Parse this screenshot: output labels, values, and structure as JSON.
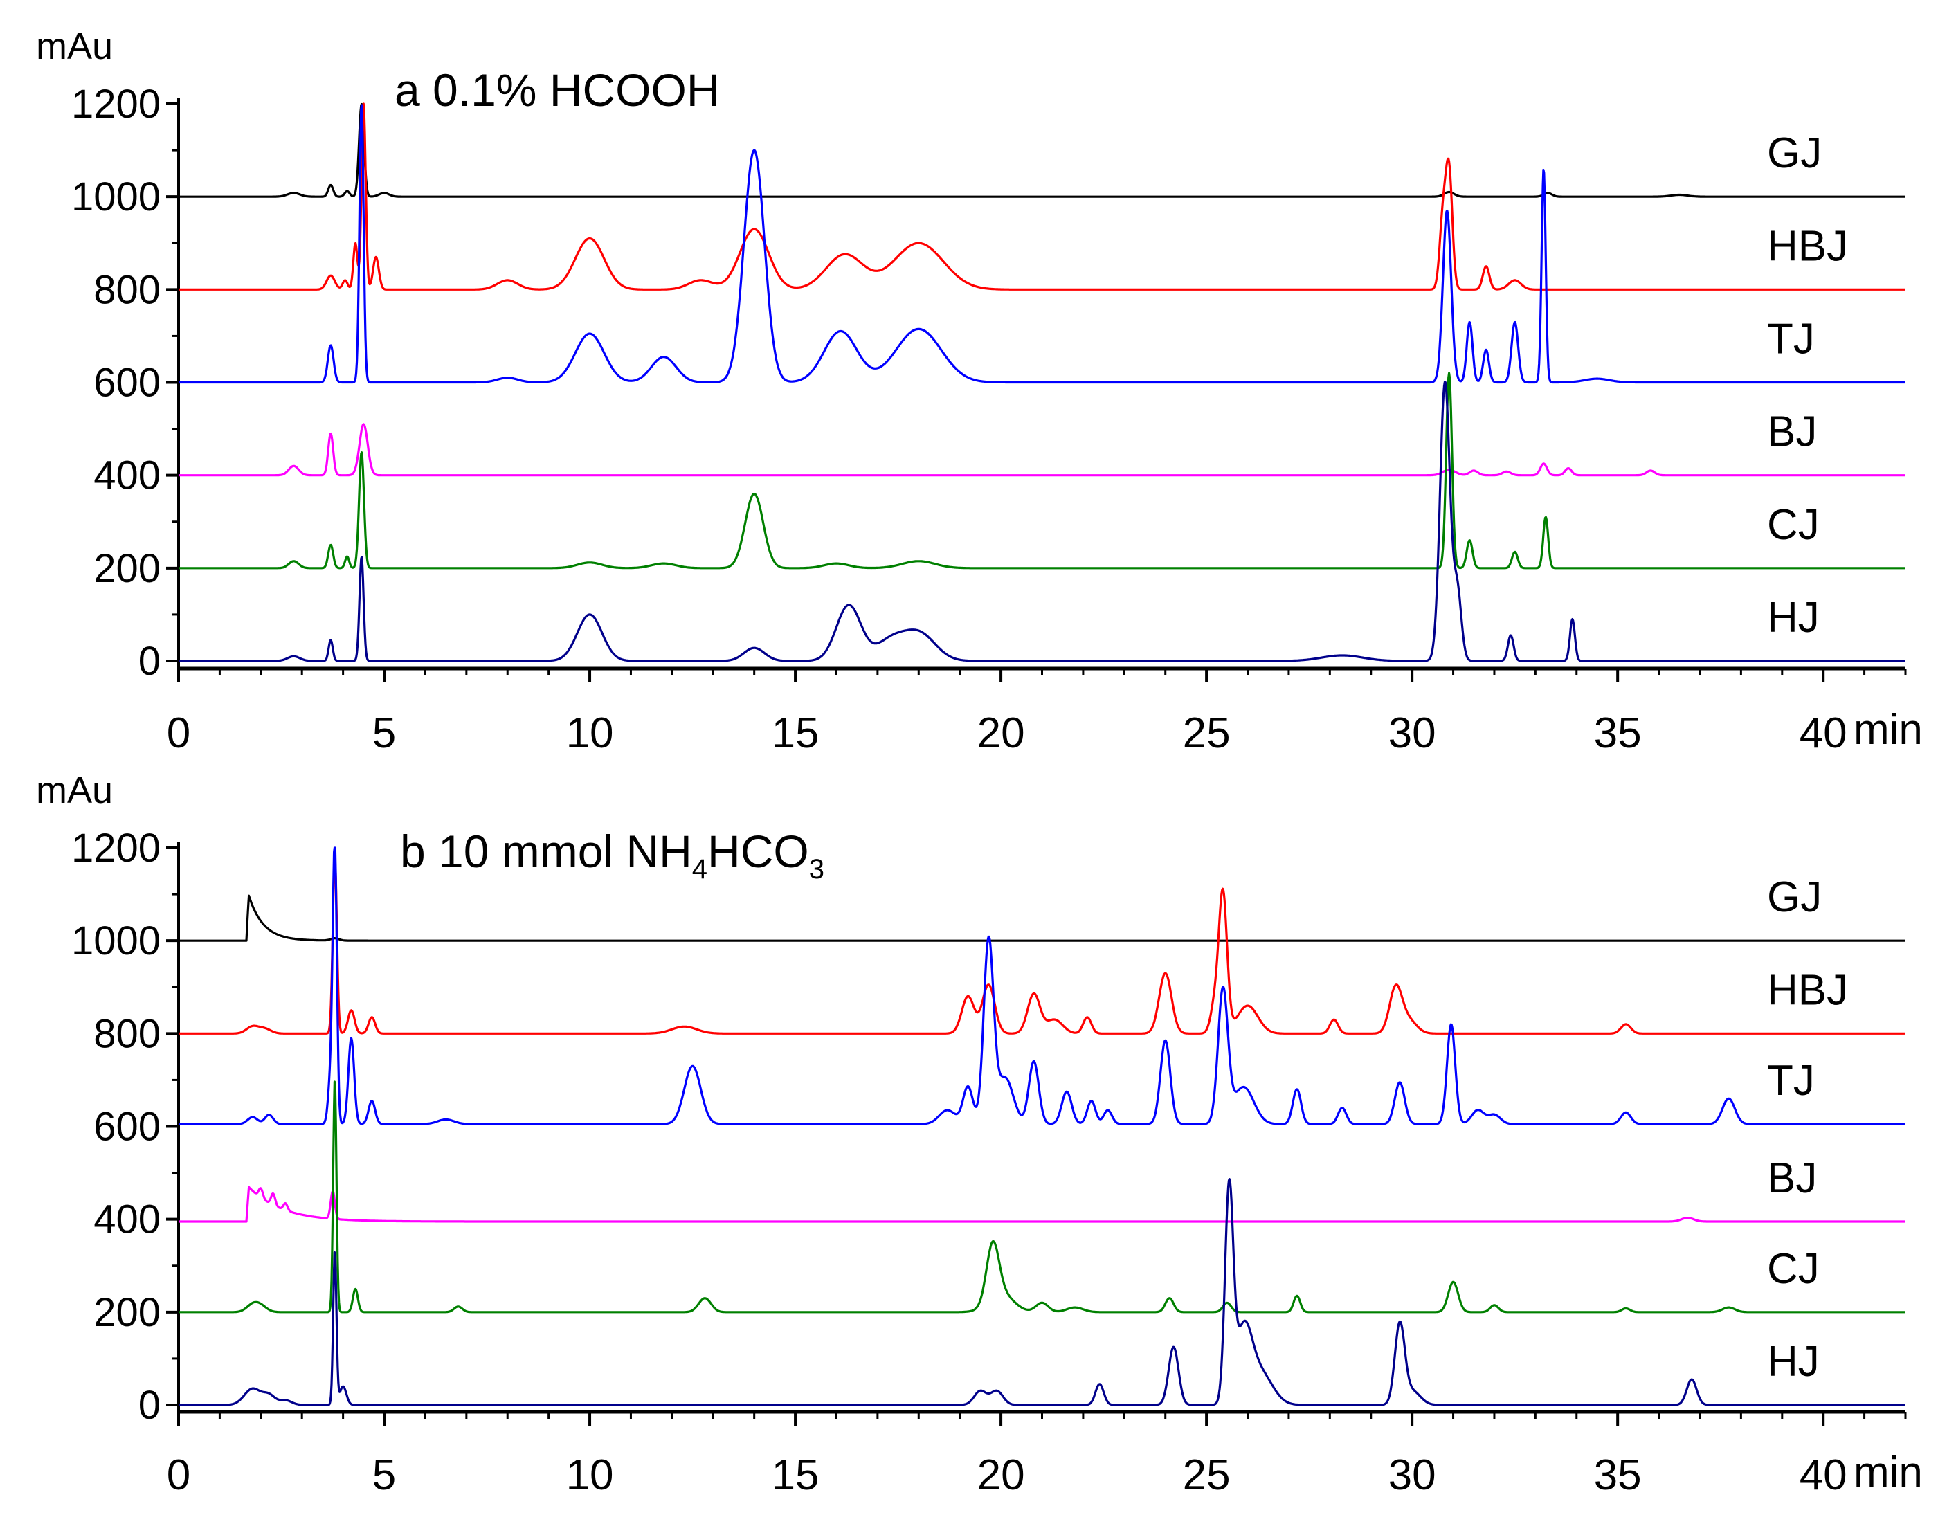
{
  "chart_data": [
    {
      "type": "line",
      "title_parts": [
        "a 0.1% HCOOH"
      ],
      "ylabel": "mAu",
      "xunit": "min",
      "xlim": [
        0,
        42
      ],
      "ylim": [
        0,
        1200
      ],
      "xticks": [
        0,
        5,
        10,
        15,
        20,
        25,
        30,
        35,
        40
      ],
      "yticks": [
        0,
        200,
        400,
        600,
        800,
        1000,
        1200
      ],
      "series": [
        {
          "name": "GJ",
          "color": "#000000",
          "baseline": 1000,
          "peaks": [
            [
              2.8,
              8,
              0.15
            ],
            [
              3.7,
              25,
              0.06
            ],
            [
              4.1,
              12,
              0.06
            ],
            [
              4.45,
              200,
              0.06
            ],
            [
              5.0,
              8,
              0.12
            ],
            [
              30.9,
              10,
              0.12
            ],
            [
              33.3,
              8,
              0.1
            ],
            [
              36.5,
              4,
              0.2
            ]
          ]
        },
        {
          "name": "HBJ",
          "color": "#ff0000",
          "baseline": 800,
          "peaks": [
            [
              3.7,
              30,
              0.1
            ],
            [
              4.05,
              20,
              0.06
            ],
            [
              4.3,
              100,
              0.05
            ],
            [
              4.5,
              400,
              0.05
            ],
            [
              4.8,
              70,
              0.07
            ],
            [
              8.0,
              20,
              0.25
            ],
            [
              10.0,
              110,
              0.35
            ],
            [
              12.7,
              20,
              0.3
            ],
            [
              14.0,
              130,
              0.35
            ],
            [
              16.2,
              75,
              0.45
            ],
            [
              18.0,
              100,
              0.6
            ],
            [
              30.75,
              150,
              0.08
            ],
            [
              30.9,
              250,
              0.08
            ],
            [
              31.8,
              50,
              0.08
            ],
            [
              32.5,
              20,
              0.15
            ]
          ]
        },
        {
          "name": "TJ",
          "color": "#0000ff",
          "baseline": 600,
          "peaks": [
            [
              3.7,
              80,
              0.07
            ],
            [
              4.45,
              600,
              0.05
            ],
            [
              8.0,
              10,
              0.25
            ],
            [
              10.0,
              105,
              0.35
            ],
            [
              11.8,
              55,
              0.3
            ],
            [
              14.0,
              500,
              0.25
            ],
            [
              16.1,
              110,
              0.4
            ],
            [
              18.0,
              115,
              0.55
            ],
            [
              30.85,
              370,
              0.1
            ],
            [
              31.4,
              130,
              0.07
            ],
            [
              31.8,
              70,
              0.07
            ],
            [
              32.5,
              130,
              0.08
            ],
            [
              33.2,
              460,
              0.05
            ],
            [
              34.5,
              8,
              0.3
            ]
          ]
        },
        {
          "name": "BJ",
          "color": "#ff00ff",
          "baseline": 400,
          "peaks": [
            [
              2.8,
              20,
              0.12
            ],
            [
              3.7,
              90,
              0.06
            ],
            [
              4.5,
              110,
              0.1
            ],
            [
              30.9,
              12,
              0.15
            ],
            [
              31.5,
              10,
              0.1
            ],
            [
              32.3,
              8,
              0.1
            ],
            [
              33.2,
              25,
              0.08
            ],
            [
              33.8,
              15,
              0.08
            ],
            [
              35.8,
              10,
              0.1
            ]
          ]
        },
        {
          "name": "CJ",
          "color": "#008000",
          "baseline": 200,
          "peaks": [
            [
              2.8,
              15,
              0.12
            ],
            [
              3.7,
              50,
              0.06
            ],
            [
              4.1,
              25,
              0.05
            ],
            [
              4.45,
              250,
              0.06
            ],
            [
              10.0,
              12,
              0.3
            ],
            [
              11.8,
              10,
              0.3
            ],
            [
              14.0,
              160,
              0.22
            ],
            [
              16.0,
              10,
              0.3
            ],
            [
              18.0,
              15,
              0.4
            ],
            [
              30.9,
              420,
              0.07
            ],
            [
              31.4,
              60,
              0.07
            ],
            [
              32.5,
              35,
              0.07
            ],
            [
              33.25,
              110,
              0.06
            ]
          ]
        },
        {
          "name": "HJ",
          "color": "#00008b",
          "baseline": 0,
          "peaks": [
            [
              2.8,
              10,
              0.15
            ],
            [
              3.7,
              45,
              0.05
            ],
            [
              4.45,
              225,
              0.05
            ],
            [
              10.0,
              100,
              0.3
            ],
            [
              14.0,
              28,
              0.25
            ],
            [
              16.3,
              120,
              0.3
            ],
            [
              17.3,
              40,
              0.35
            ],
            [
              18.0,
              60,
              0.4
            ],
            [
              28.3,
              12,
              0.5
            ],
            [
              30.8,
              600,
              0.12
            ],
            [
              31.1,
              150,
              0.1
            ],
            [
              32.4,
              55,
              0.07
            ],
            [
              33.9,
              90,
              0.06
            ]
          ]
        }
      ]
    },
    {
      "type": "line",
      "title_parts": [
        "b 10 mmol NH",
        "4",
        "HCO",
        "3"
      ],
      "ylabel": "mAu",
      "xunit": "min",
      "xlim": [
        0,
        42
      ],
      "ylim": [
        0,
        1200
      ],
      "xticks": [
        0,
        5,
        10,
        15,
        20,
        25,
        30,
        35,
        40
      ],
      "yticks": [
        0,
        200,
        400,
        600,
        800,
        1000,
        1200
      ],
      "series": [
        {
          "name": "GJ",
          "color": "#000000",
          "baseline": 1000,
          "tail": [
            1.65,
            115,
            0.35
          ],
          "peaks": [
            [
              3.8,
              5,
              0.1
            ]
          ]
        },
        {
          "name": "HBJ",
          "color": "#ff0000",
          "baseline": 800,
          "peaks": [
            [
              1.8,
              15,
              0.15
            ],
            [
              2.1,
              10,
              0.15
            ],
            [
              3.8,
              380,
              0.05
            ],
            [
              4.2,
              50,
              0.08
            ],
            [
              4.7,
              35,
              0.08
            ],
            [
              12.3,
              15,
              0.3
            ],
            [
              19.2,
              80,
              0.15
            ],
            [
              19.7,
              105,
              0.15
            ],
            [
              20.8,
              85,
              0.15
            ],
            [
              21.3,
              30,
              0.2
            ],
            [
              22.1,
              35,
              0.1
            ],
            [
              24.0,
              130,
              0.15
            ],
            [
              25.2,
              60,
              0.1
            ],
            [
              25.4,
              300,
              0.1
            ],
            [
              26.0,
              60,
              0.25
            ],
            [
              28.1,
              30,
              0.1
            ],
            [
              29.6,
              95,
              0.15
            ],
            [
              29.9,
              30,
              0.2
            ],
            [
              35.2,
              20,
              0.12
            ]
          ]
        },
        {
          "name": "TJ",
          "color": "#0000ff",
          "baseline": 605,
          "peaks": [
            [
              1.8,
              15,
              0.12
            ],
            [
              2.2,
              20,
              0.1
            ],
            [
              3.7,
              100,
              0.06
            ],
            [
              3.8,
              590,
              0.05
            ],
            [
              4.2,
              185,
              0.07
            ],
            [
              4.7,
              50,
              0.08
            ],
            [
              6.5,
              10,
              0.2
            ],
            [
              12.5,
              125,
              0.2
            ],
            [
              18.7,
              30,
              0.2
            ],
            [
              19.2,
              80,
              0.12
            ],
            [
              19.7,
              390,
              0.12
            ],
            [
              20.1,
              100,
              0.2
            ],
            [
              20.8,
              135,
              0.12
            ],
            [
              21.6,
              70,
              0.12
            ],
            [
              22.2,
              50,
              0.1
            ],
            [
              22.6,
              30,
              0.1
            ],
            [
              24.0,
              180,
              0.12
            ],
            [
              25.4,
              285,
              0.12
            ],
            [
              25.9,
              80,
              0.25
            ],
            [
              27.2,
              75,
              0.1
            ],
            [
              28.3,
              35,
              0.1
            ],
            [
              29.7,
              90,
              0.12
            ],
            [
              30.95,
              215,
              0.1
            ],
            [
              31.6,
              30,
              0.15
            ],
            [
              32.0,
              20,
              0.15
            ],
            [
              35.2,
              25,
              0.12
            ],
            [
              37.7,
              55,
              0.15
            ]
          ]
        },
        {
          "name": "BJ",
          "color": "#ff00ff",
          "baseline": 395,
          "tail": [
            1.65,
            80,
            0.8
          ],
          "peaks": [
            [
              2.0,
              20,
              0.05
            ],
            [
              2.3,
              25,
              0.05
            ],
            [
              2.6,
              15,
              0.05
            ],
            [
              3.75,
              60,
              0.05
            ],
            [
              36.7,
              8,
              0.15
            ]
          ]
        },
        {
          "name": "CJ",
          "color": "#008000",
          "baseline": 200,
          "peaks": [
            [
              1.8,
              15,
              0.15
            ],
            [
              2.0,
              12,
              0.15
            ],
            [
              3.8,
              500,
              0.04
            ],
            [
              4.3,
              50,
              0.06
            ],
            [
              6.8,
              12,
              0.1
            ],
            [
              12.8,
              30,
              0.15
            ],
            [
              19.8,
              120,
              0.15
            ],
            [
              20.0,
              40,
              0.3
            ],
            [
              21.0,
              20,
              0.15
            ],
            [
              21.8,
              10,
              0.2
            ],
            [
              24.1,
              30,
              0.1
            ],
            [
              25.5,
              20,
              0.1
            ],
            [
              27.2,
              35,
              0.08
            ],
            [
              31.0,
              65,
              0.12
            ],
            [
              32.0,
              15,
              0.1
            ],
            [
              35.2,
              8,
              0.1
            ],
            [
              37.7,
              10,
              0.15
            ]
          ]
        },
        {
          "name": "HJ",
          "color": "#00008b",
          "baseline": 0,
          "peaks": [
            [
              1.8,
              35,
              0.2
            ],
            [
              2.2,
              20,
              0.15
            ],
            [
              2.6,
              10,
              0.15
            ],
            [
              3.8,
              330,
              0.04
            ],
            [
              4.0,
              40,
              0.08
            ],
            [
              19.5,
              30,
              0.15
            ],
            [
              19.9,
              30,
              0.15
            ],
            [
              22.4,
              45,
              0.1
            ],
            [
              24.2,
              125,
              0.12
            ],
            [
              25.55,
              450,
              0.1
            ],
            [
              25.9,
              150,
              0.2
            ],
            [
              26.3,
              70,
              0.3
            ],
            [
              29.7,
              170,
              0.12
            ],
            [
              30.0,
              30,
              0.2
            ],
            [
              36.8,
              55,
              0.12
            ]
          ]
        }
      ]
    }
  ]
}
